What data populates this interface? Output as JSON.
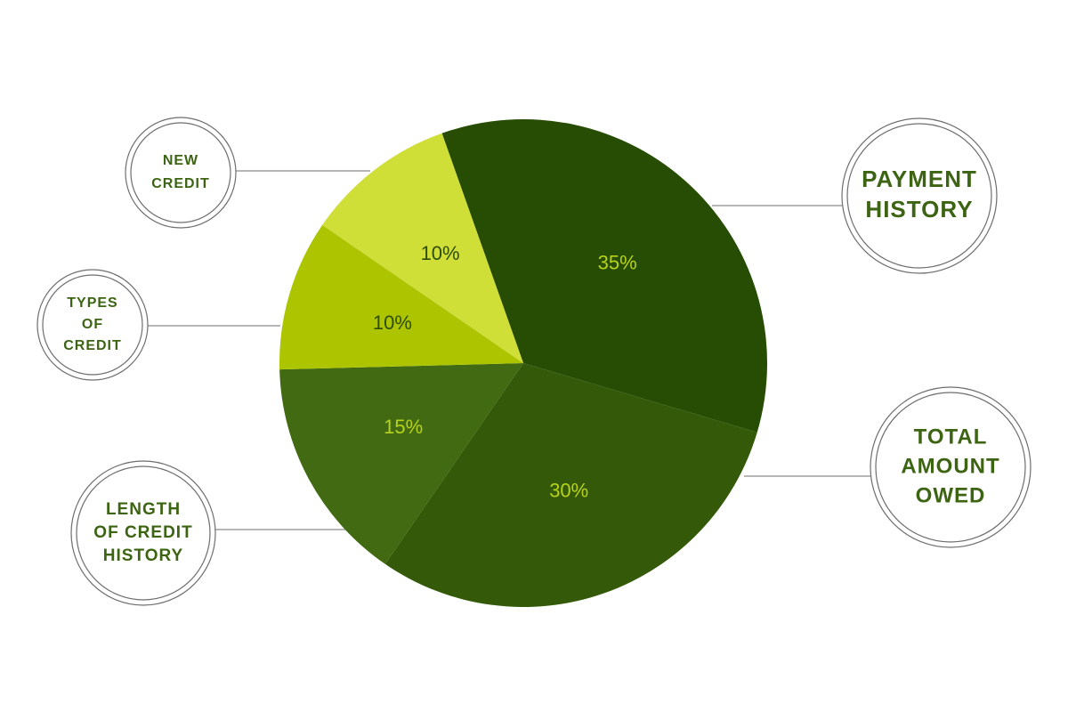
{
  "chart_data": {
    "type": "pie",
    "categories": [
      "PAYMENT HISTORY",
      "TOTAL AMOUNT OWED",
      "LENGTH OF CREDIT HISTORY",
      "TYPES OF CREDIT",
      "NEW CREDIT"
    ],
    "values": [
      35,
      30,
      15,
      10,
      10
    ],
    "value_labels": [
      "35%",
      "30%",
      "15%",
      "10%",
      "10%"
    ],
    "callouts": [
      {
        "lines": [
          "PAYMENT",
          "HISTORY"
        ]
      },
      {
        "lines": [
          "TOTAL",
          "AMOUNT",
          "OWED"
        ]
      },
      {
        "lines": [
          "LENGTH",
          "OF CREDIT",
          "HISTORY"
        ]
      },
      {
        "lines": [
          "TYPES",
          "OF",
          "CREDIT"
        ]
      },
      {
        "lines": [
          "NEW",
          "CREDIT"
        ]
      }
    ],
    "colors": [
      "#274d04",
      "#345a09",
      "#426a12",
      "#adc500",
      "#d0de38"
    ],
    "label_colors": [
      "#b8d21a",
      "#b8d21a",
      "#b8d21a",
      "#2d4d08",
      "#2d4d08"
    ],
    "callout_text_color": "#3c6412",
    "title": "",
    "legend": "none"
  }
}
